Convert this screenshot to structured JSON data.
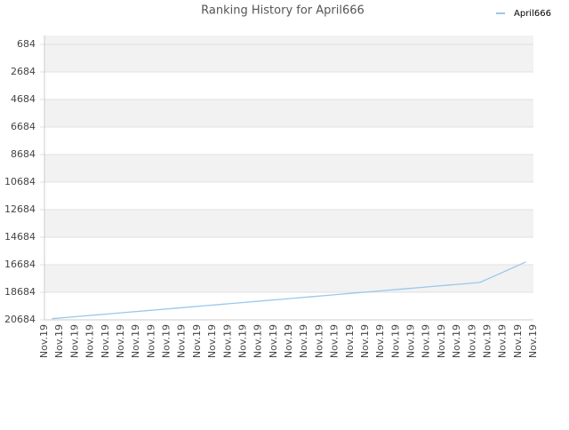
{
  "chart_data": {
    "type": "line",
    "title": "Ranking History for April666",
    "categories": [
      "Nov.19",
      "Nov.19",
      "Nov.19",
      "Nov.19",
      "Nov.19",
      "Nov.19",
      "Nov.19",
      "Nov.19",
      "Nov.19",
      "Nov.19",
      "Nov.19",
      "Nov.19",
      "Nov.19",
      "Nov.19",
      "Nov.19",
      "Nov.19",
      "Nov.19",
      "Nov.19",
      "Nov.19",
      "Nov.19",
      "Nov.19",
      "Nov.19",
      "Nov.19",
      "Nov.19",
      "Nov.19",
      "Nov.19",
      "Nov.19",
      "Nov.19",
      "Nov.19",
      "Nov.19",
      "Nov.19",
      "Nov.19"
    ],
    "series": [
      {
        "name": "April666",
        "color": "#99c8ec",
        "values": [
          20600,
          20506,
          20412,
          20318,
          20224,
          20130,
          20036,
          19942,
          19848,
          19754,
          19660,
          19566,
          19472,
          19378,
          19284,
          19190,
          19096,
          19002,
          18908,
          18814,
          18720,
          18626,
          18532,
          18438,
          18344,
          18250,
          18156,
          18062,
          17968,
          17480,
          16980,
          16480
        ]
      }
    ],
    "ylim": [
      20684,
      39
    ],
    "yticks": [
      684,
      2684,
      4684,
      6684,
      8684,
      10684,
      12684,
      14684,
      16684,
      18684,
      20684
    ],
    "grid": true,
    "legend": "top-right"
  }
}
